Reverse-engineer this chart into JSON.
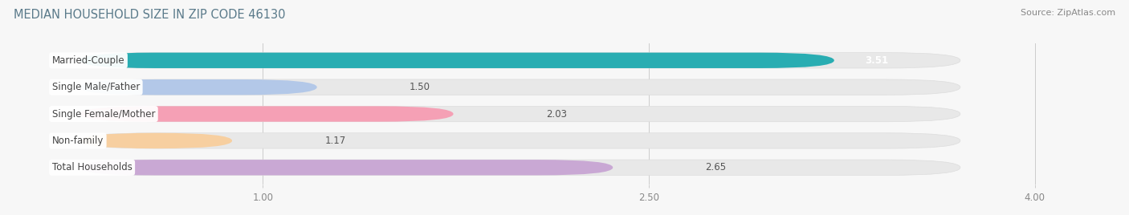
{
  "title": "MEDIAN HOUSEHOLD SIZE IN ZIP CODE 46130",
  "source": "Source: ZipAtlas.com",
  "categories": [
    "Married-Couple",
    "Single Male/Father",
    "Single Female/Mother",
    "Non-family",
    "Total Households"
  ],
  "values": [
    3.51,
    1.5,
    2.03,
    1.17,
    2.65
  ],
  "bar_colors": [
    "#29adb2",
    "#b3c8e8",
    "#f5a0b5",
    "#f7cfA0",
    "#c9a8d4"
  ],
  "value_inside": [
    true,
    false,
    false,
    false,
    false
  ],
  "background_color": "#f7f7f7",
  "bar_bg_color": "#e8e8e8",
  "bar_bg_border": "#dcdcdc",
  "xlim_min": 0,
  "xlim_max": 4.3,
  "xaxis_max": 4.0,
  "xticks": [
    1.0,
    2.5,
    4.0
  ],
  "xticklabels": [
    "1.00",
    "2.50",
    "4.00"
  ],
  "title_fontsize": 10.5,
  "label_fontsize": 8.5,
  "value_fontsize": 8.5,
  "source_fontsize": 8,
  "title_color": "#5a7a8a",
  "source_color": "#888888",
  "label_color": "#444444",
  "value_color_inside": "#ffffff",
  "value_color_outside": "#555555",
  "tick_color": "#888888"
}
